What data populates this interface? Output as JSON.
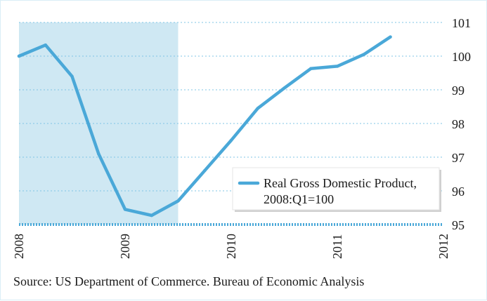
{
  "chart_data": {
    "type": "line",
    "title": "",
    "xlabel": "",
    "ylabel": "",
    "xlim": [
      2008.0,
      2012.0
    ],
    "ylim": [
      95,
      101
    ],
    "x_ticks": [
      "2008",
      "2009",
      "2010",
      "2011",
      "2012"
    ],
    "y_ticks": [
      "95",
      "96",
      "97",
      "98",
      "99",
      "100",
      "101"
    ],
    "recession_shading": {
      "start": 2008.0,
      "end": 2009.5
    },
    "series": [
      {
        "name": "Real Gross Domestic Product, 2008:Q1=100",
        "legend_line1": "Real Gross Domestic Product,",
        "legend_line2": "2008:Q1=100",
        "x": [
          2008.0,
          2008.25,
          2008.5,
          2008.75,
          2009.0,
          2009.25,
          2009.5,
          2009.75,
          2010.0,
          2010.25,
          2010.5,
          2010.75,
          2011.0,
          2011.25,
          2011.5
        ],
        "values": [
          100.0,
          100.33,
          99.4,
          97.1,
          95.45,
          95.27,
          95.7,
          96.6,
          97.5,
          98.45,
          99.05,
          99.63,
          99.7,
          100.05,
          100.57
        ]
      }
    ],
    "legend_position": "lower-right",
    "colors": {
      "line": "#4aa8d8",
      "shade": "#cfe8f3",
      "grid": "#7fc4e4",
      "axis": "#4aa8d8"
    }
  },
  "source": "Source: US Department of Commerce. Bureau of Economic Analysis"
}
